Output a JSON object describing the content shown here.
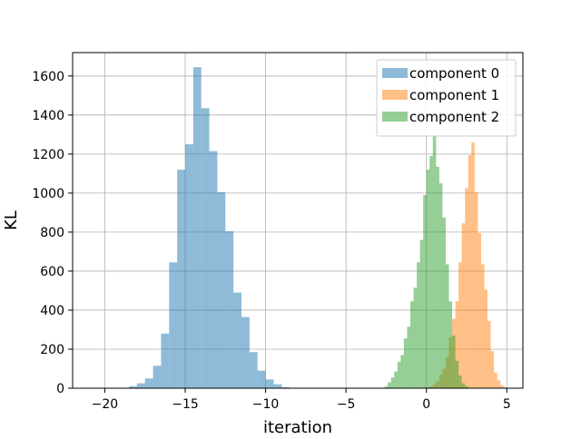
{
  "chart_data": {
    "type": "histogram",
    "title": "",
    "xlabel": "iteration",
    "ylabel": "KL",
    "xlim": [
      -22.0,
      6.0
    ],
    "ylim": [
      0,
      1720
    ],
    "grid": true,
    "legend_placement": "top-right",
    "x_ticks": [
      -20,
      -15,
      -10,
      -5,
      0,
      5
    ],
    "x_tick_labels": [
      "−20",
      "−15",
      "−10",
      "−5",
      "0",
      "5"
    ],
    "y_ticks": [
      0,
      200,
      400,
      600,
      800,
      1000,
      1200,
      1400,
      1600
    ],
    "y_tick_labels": [
      "0",
      "200",
      "400",
      "600",
      "800",
      "1000",
      "1200",
      "1400",
      "1600"
    ],
    "series": [
      {
        "name": "component 0",
        "color": "#1f77b4",
        "bin_start": -18.5,
        "bin_width": 0.5,
        "counts": [
          10,
          25,
          50,
          115,
          280,
          645,
          1120,
          1250,
          1645,
          1435,
          1215,
          1005,
          805,
          490,
          365,
          185,
          90,
          45,
          20,
          5
        ]
      },
      {
        "name": "component 1",
        "color": "#ff7f0e",
        "bin_start": 0.0,
        "bin_width": 0.2,
        "counts": [
          5,
          10,
          20,
          35,
          70,
          100,
          160,
          260,
          355,
          445,
          645,
          845,
          1025,
          1195,
          1260,
          1005,
          795,
          635,
          505,
          345,
          190,
          80,
          40,
          15,
          5
        ]
      },
      {
        "name": "component 2",
        "color": "#2ca02c",
        "bin_start": -2.6,
        "bin_width": 0.2,
        "counts": [
          10,
          30,
          55,
          85,
          135,
          170,
          255,
          315,
          445,
          515,
          645,
          760,
          990,
          1120,
          1190,
          1290,
          1135,
          1050,
          875,
          635,
          445,
          270,
          140,
          65,
          25,
          10
        ]
      }
    ]
  }
}
